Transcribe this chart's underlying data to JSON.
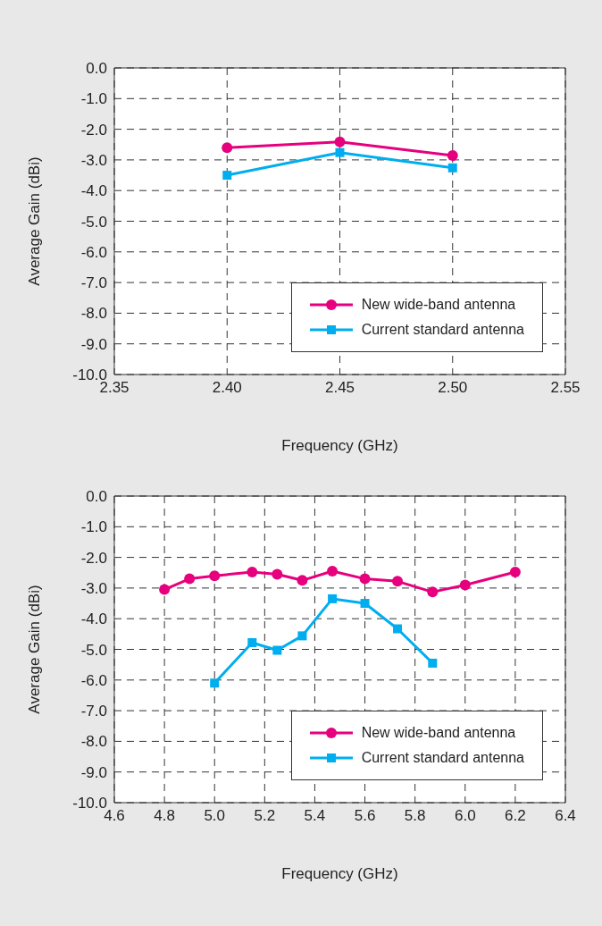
{
  "chart_data": [
    {
      "type": "line",
      "xlabel": "Frequency (GHz)",
      "ylabel": "Average Gain (dBi)",
      "xlim": [
        2.35,
        2.55
      ],
      "xticks": [
        {
          "value": 2.35,
          "label": "2.35"
        },
        {
          "value": 2.4,
          "label": "2.40"
        },
        {
          "value": 2.45,
          "label": "2.45"
        },
        {
          "value": 2.5,
          "label": "2.50"
        },
        {
          "value": 2.55,
          "label": "2.55"
        }
      ],
      "ylim": [
        -10,
        0
      ],
      "yticks": [
        {
          "value": 0,
          "label": "0.0"
        },
        {
          "value": -1,
          "label": "-1.0"
        },
        {
          "value": -2,
          "label": "-2.0"
        },
        {
          "value": -3,
          "label": "-3.0"
        },
        {
          "value": -4,
          "label": "-4.0"
        },
        {
          "value": -5,
          "label": "-5.0"
        },
        {
          "value": -6,
          "label": "-6.0"
        },
        {
          "value": -7,
          "label": "-7.0"
        },
        {
          "value": -8,
          "label": "-8.0"
        },
        {
          "value": -9,
          "label": "-9.0"
        },
        {
          "value": -10,
          "label": "-10.0"
        }
      ],
      "grid": true,
      "legend": "bottom right",
      "line_style": "solid",
      "series": [
        {
          "name": "New wide-band antenna",
          "color": "#e6007e",
          "marker": "circle",
          "x": [
            2.4,
            2.45,
            2.5
          ],
          "values": [
            -2.6,
            -2.41,
            -2.86
          ]
        },
        {
          "name": "Current standard antenna",
          "color": "#00aeef",
          "marker": "square",
          "x": [
            2.4,
            2.45,
            2.5
          ],
          "values": [
            -3.5,
            -2.76,
            -3.26
          ]
        }
      ]
    },
    {
      "type": "line",
      "xlabel": "Frequency (GHz)",
      "ylabel": "Average Gain (dBi)",
      "xlim": [
        4.6,
        6.4
      ],
      "xticks": [
        4.6,
        4.8,
        {
          "value": 5,
          "label": "5.0"
        },
        5.2,
        5.4,
        5.6,
        5.8,
        {
          "value": 6,
          "label": "6.0"
        },
        6.2,
        6.4
      ],
      "ylim": [
        -10,
        0
      ],
      "yticks": [
        {
          "value": 0,
          "label": "0.0"
        },
        {
          "value": -1,
          "label": "-1.0"
        },
        {
          "value": -2,
          "label": "-2.0"
        },
        {
          "value": -3,
          "label": "-3.0"
        },
        {
          "value": -4,
          "label": "-4.0"
        },
        {
          "value": -5,
          "label": "-5.0"
        },
        {
          "value": -6,
          "label": "-6.0"
        },
        {
          "value": -7,
          "label": "-7.0"
        },
        {
          "value": -8,
          "label": "-8.0"
        },
        {
          "value": -9,
          "label": "-9.0"
        },
        {
          "value": -10,
          "label": "-10.0"
        }
      ],
      "grid": true,
      "legend": "bottom right",
      "line_style": "solid",
      "series": [
        {
          "name": "New wide-band antenna",
          "color": "#e6007e",
          "marker": "circle",
          "x": [
            4.8,
            4.9,
            5.0,
            5.15,
            5.25,
            5.35,
            5.47,
            5.6,
            5.73,
            5.87,
            6.0,
            6.2
          ],
          "values": [
            -3.05,
            -2.7,
            -2.6,
            -2.48,
            -2.55,
            -2.75,
            -2.45,
            -2.7,
            -2.78,
            -3.13,
            -2.9,
            -2.48
          ]
        },
        {
          "name": "Current standard antenna",
          "color": "#00aeef",
          "marker": "square",
          "x": [
            5.0,
            5.15,
            5.25,
            5.35,
            5.47,
            5.6,
            5.73,
            5.87
          ],
          "values": [
            -6.1,
            -4.78,
            -5.03,
            -4.56,
            -3.35,
            -3.5,
            -4.33,
            -5.45
          ]
        }
      ]
    }
  ]
}
